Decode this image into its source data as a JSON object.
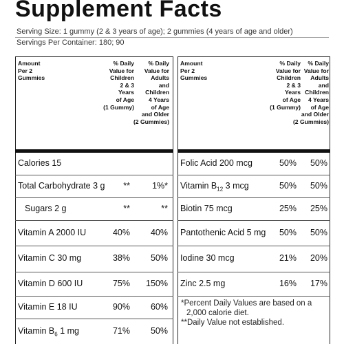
{
  "title": "Supplement Facts",
  "serving_size": "Serving Size: 1 gummy (2 & 3 years of age); 2 gummies (4 years of age and older)",
  "servings_per_container": "Servings Per Container: 180; 90",
  "panels": [
    {
      "header": {
        "amount": [
          "Amount",
          "Per 2",
          "Gummies"
        ],
        "dv_children": [
          "% Daily",
          "Value for",
          "Children",
          "2 & 3",
          "Years",
          "of Age",
          "(1 Gummy)"
        ],
        "dv_adults": [
          "% Daily",
          "Value for",
          "Adults",
          "and",
          "Children",
          "4 Years",
          "of Age",
          "and Older",
          "(2 Gummies)"
        ]
      },
      "rows": [
        {
          "name": "Calories 15"
        },
        {
          "name": "Total Carbohydrate 3 g",
          "children": "**",
          "adults": "1%*"
        },
        {
          "name": "Sugars 2 g",
          "children": "**",
          "adults": "**",
          "indent": true
        },
        {
          "name": "Vitamin A 2000 IU",
          "children": "40%",
          "adults": "40%"
        },
        {
          "name": "Vitamin C 30 mg",
          "children": "38%",
          "adults": "50%"
        },
        {
          "name": "Vitamin D 600 IU",
          "children": "75%",
          "adults": "150%"
        },
        {
          "name": "Vitamin E 18 IU",
          "children": "90%",
          "adults": "60%"
        },
        {
          "name": "Vitamin B",
          "subscript": "6",
          "amount": "1 mg",
          "children": "71%",
          "adults": "50%"
        }
      ]
    },
    {
      "header": {
        "amount": [
          "Amount",
          "Per 2",
          "Gummies"
        ],
        "dv_children": [
          "% Daily",
          "Value for",
          "Children",
          "2 & 3",
          "Years",
          "of Age",
          "(1 Gummy)"
        ],
        "dv_adults": [
          "% Daily",
          "Value for",
          "Adults",
          "and",
          "Children",
          "4 Years",
          "of Age",
          "and Older",
          "(2 Gummies)"
        ]
      },
      "rows": [
        {
          "name": "Folic Acid 200 mcg",
          "children": "50%",
          "adults": "50%"
        },
        {
          "name": "Vitamin B",
          "subscript": "12",
          "amount": "3 mcg",
          "children": "50%",
          "adults": "50%"
        },
        {
          "name": "Biotin 75 mcg",
          "children": "25%",
          "adults": "25%"
        },
        {
          "name": "Pantothenic Acid 5 mg",
          "children": "50%",
          "adults": "50%"
        },
        {
          "name": "Iodine 30 mcg",
          "children": "21%",
          "adults": "20%"
        },
        {
          "name": "Zinc 2.5 mg",
          "children": "16%",
          "adults": "17%"
        }
      ],
      "footnotes": [
        "*Percent Daily Values are based on a 2,000 calorie diet.",
        "**Daily Value not established."
      ]
    }
  ]
}
